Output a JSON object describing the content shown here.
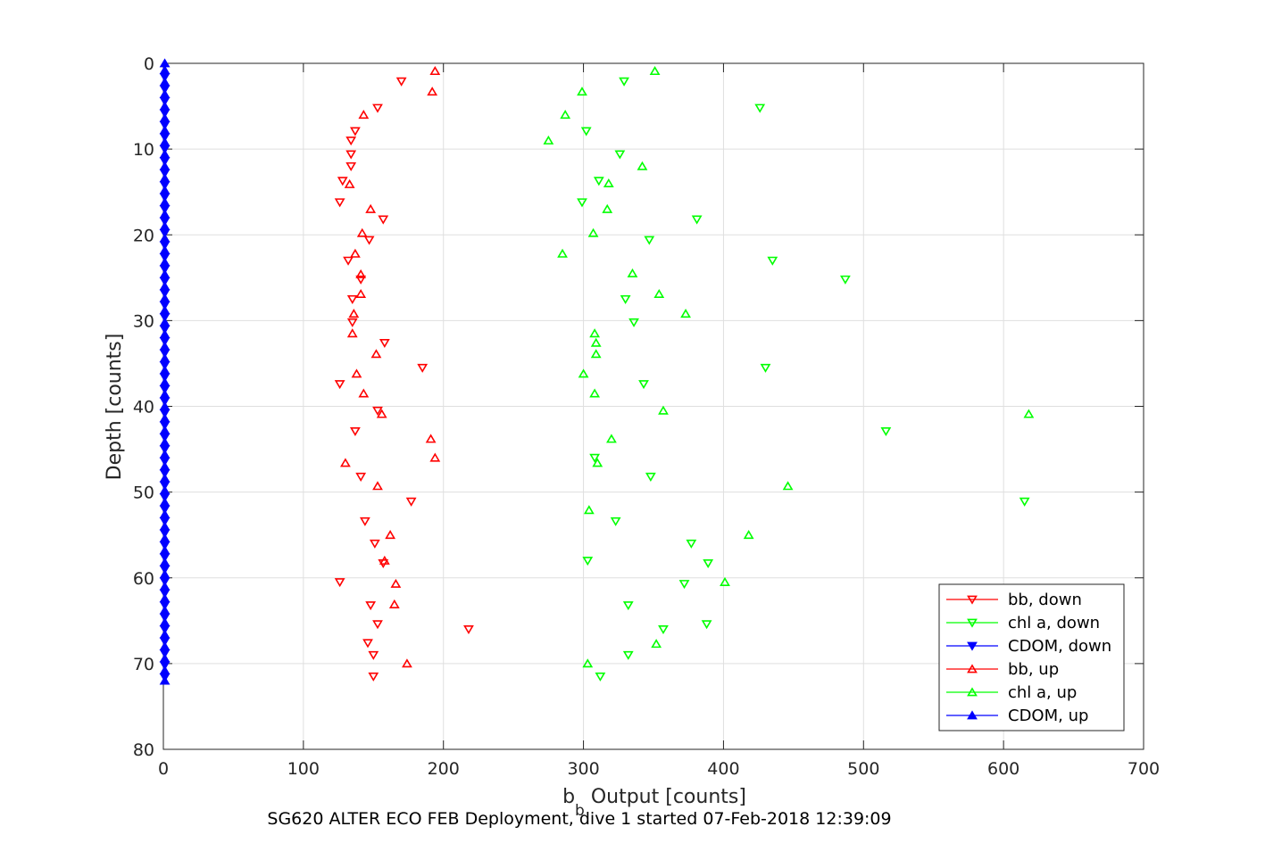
{
  "chart_data": {
    "type": "scatter",
    "title": "",
    "xlabel_main": "b",
    "xlabel_sub": "b",
    "xlabel_rest": " Output [counts]",
    "ylabel": "Depth [counts]",
    "caption": "SG620 ALTER ECO FEB Deployment, dive 1 started 07-Feb-2018 12:39:09",
    "xlim": [
      0,
      700
    ],
    "ylim": [
      0,
      80
    ],
    "y_reversed": true,
    "grid": true,
    "legend_position": "bottom-right",
    "x_ticks": [
      "0",
      "100",
      "200",
      "300",
      "400",
      "500",
      "600",
      "700"
    ],
    "y_ticks": [
      "0",
      "10",
      "20",
      "30",
      "40",
      "50",
      "60",
      "70",
      "80"
    ],
    "x_tick_values": [
      0,
      100,
      200,
      300,
      400,
      500,
      600,
      700
    ],
    "y_tick_values": [
      0,
      10,
      20,
      30,
      40,
      50,
      60,
      70,
      80
    ],
    "series": [
      {
        "name": "bb, down",
        "color": "#ff0000",
        "marker": "triangle-down",
        "points": [
          [
            170,
            2.1
          ],
          [
            153,
            5.2
          ],
          [
            137,
            7.9
          ],
          [
            134,
            9.0
          ],
          [
            134,
            10.6
          ],
          [
            134,
            12.0
          ],
          [
            128,
            13.7
          ],
          [
            126,
            16.2
          ],
          [
            157,
            18.2
          ],
          [
            147,
            20.6
          ],
          [
            132,
            23.0
          ],
          [
            141,
            25.2
          ],
          [
            135,
            27.5
          ],
          [
            135,
            30.2
          ],
          [
            158,
            32.6
          ],
          [
            185,
            35.5
          ],
          [
            126,
            37.4
          ],
          [
            153,
            40.5
          ],
          [
            137,
            42.9
          ],
          [
            141,
            48.2
          ],
          [
            177,
            51.1
          ],
          [
            144,
            53.4
          ],
          [
            151,
            56.0
          ],
          [
            157,
            58.3
          ],
          [
            126,
            60.5
          ],
          [
            148,
            63.2
          ],
          [
            153,
            65.4
          ],
          [
            218,
            66.0
          ],
          [
            146,
            67.6
          ],
          [
            150,
            69.0
          ],
          [
            150,
            71.5
          ]
        ]
      },
      {
        "name": "chl a, down",
        "color": "#00ff00",
        "marker": "triangle-down",
        "points": [
          [
            329,
            2.1
          ],
          [
            426,
            5.2
          ],
          [
            302,
            7.9
          ],
          [
            326,
            10.6
          ],
          [
            311,
            13.7
          ],
          [
            299,
            16.2
          ],
          [
            381,
            18.2
          ],
          [
            347,
            20.6
          ],
          [
            435,
            23.0
          ],
          [
            487,
            25.2
          ],
          [
            330,
            27.5
          ],
          [
            336,
            30.2
          ],
          [
            430,
            35.5
          ],
          [
            343,
            37.4
          ],
          [
            516,
            42.9
          ],
          [
            308,
            46.0
          ],
          [
            348,
            48.2
          ],
          [
            615,
            51.1
          ],
          [
            323,
            53.4
          ],
          [
            377,
            56.0
          ],
          [
            303,
            58.0
          ],
          [
            389,
            58.3
          ],
          [
            372,
            60.7
          ],
          [
            332,
            63.2
          ],
          [
            388,
            65.4
          ],
          [
            357,
            66.0
          ],
          [
            332,
            69.0
          ],
          [
            312,
            71.5
          ]
        ]
      },
      {
        "name": "CDOM, down",
        "color": "#0000ff",
        "marker": "triangle-down",
        "points": [
          [
            1,
            1.6
          ],
          [
            1,
            3.0
          ],
          [
            1,
            4.4
          ],
          [
            1,
            5.8
          ],
          [
            1,
            7.2
          ],
          [
            1,
            8.6
          ],
          [
            1,
            10.0
          ],
          [
            1,
            11.4
          ],
          [
            1,
            12.8
          ],
          [
            1,
            14.2
          ],
          [
            1,
            15.6
          ],
          [
            1,
            17.0
          ],
          [
            1,
            18.4
          ],
          [
            1,
            19.8
          ],
          [
            1,
            21.2
          ],
          [
            1,
            22.6
          ],
          [
            1,
            24.0
          ],
          [
            1,
            25.4
          ],
          [
            1,
            26.8
          ],
          [
            1,
            28.2
          ],
          [
            1,
            29.6
          ],
          [
            1,
            31.0
          ],
          [
            1,
            32.4
          ],
          [
            1,
            33.8
          ],
          [
            1,
            35.2
          ],
          [
            1,
            36.6
          ],
          [
            1,
            38.0
          ],
          [
            1,
            39.4
          ],
          [
            1,
            40.8
          ],
          [
            1,
            42.2
          ],
          [
            1,
            43.6
          ],
          [
            1,
            45.0
          ],
          [
            1,
            46.4
          ],
          [
            1,
            47.8
          ],
          [
            1,
            49.2
          ],
          [
            1,
            50.6
          ],
          [
            1,
            52.0
          ],
          [
            1,
            53.4
          ],
          [
            1,
            54.8
          ],
          [
            1,
            56.2
          ],
          [
            1,
            57.6
          ],
          [
            1,
            59.0
          ],
          [
            1,
            60.4
          ],
          [
            1,
            61.8
          ],
          [
            1,
            63.2
          ],
          [
            1,
            64.6
          ],
          [
            1,
            66.0
          ],
          [
            1,
            67.4
          ],
          [
            1,
            68.8
          ],
          [
            1,
            70.2
          ],
          [
            1,
            71.6
          ]
        ]
      },
      {
        "name": "bb, up",
        "color": "#ff0000",
        "marker": "triangle-up",
        "points": [
          [
            194,
            0.9
          ],
          [
            192,
            3.3
          ],
          [
            143,
            6.0
          ],
          [
            133,
            14.1
          ],
          [
            148,
            17.0
          ],
          [
            142,
            19.8
          ],
          [
            137,
            22.2
          ],
          [
            141,
            24.6
          ],
          [
            141,
            26.9
          ],
          [
            136,
            29.2
          ],
          [
            135,
            31.5
          ],
          [
            152,
            33.9
          ],
          [
            138,
            36.2
          ],
          [
            143,
            38.5
          ],
          [
            156,
            40.9
          ],
          [
            191,
            43.8
          ],
          [
            194,
            46.0
          ],
          [
            130,
            46.6
          ],
          [
            153,
            49.3
          ],
          [
            162,
            55.0
          ],
          [
            158,
            58.0
          ],
          [
            166,
            60.7
          ],
          [
            165,
            63.1
          ],
          [
            174,
            70.0
          ]
        ]
      },
      {
        "name": "chl a, up",
        "color": "#00ff00",
        "marker": "triangle-up",
        "points": [
          [
            351,
            0.9
          ],
          [
            299,
            3.3
          ],
          [
            287,
            6.0
          ],
          [
            275,
            9.0
          ],
          [
            342,
            12.0
          ],
          [
            318,
            14.0
          ],
          [
            317,
            17.0
          ],
          [
            307,
            19.8
          ],
          [
            285,
            22.2
          ],
          [
            335,
            24.5
          ],
          [
            354,
            26.9
          ],
          [
            373,
            29.2
          ],
          [
            308,
            31.5
          ],
          [
            309,
            32.6
          ],
          [
            309,
            33.9
          ],
          [
            300,
            36.2
          ],
          [
            308,
            38.5
          ],
          [
            357,
            40.5
          ],
          [
            618,
            40.9
          ],
          [
            320,
            43.8
          ],
          [
            310,
            46.6
          ],
          [
            446,
            49.3
          ],
          [
            304,
            52.1
          ],
          [
            418,
            55.0
          ],
          [
            401,
            60.5
          ],
          [
            352,
            67.7
          ],
          [
            303,
            70.0
          ]
        ]
      },
      {
        "name": "CDOM, up",
        "color": "#0000ff",
        "marker": "triangle-up",
        "points": [
          [
            1,
            0.0
          ],
          [
            1,
            0.8
          ],
          [
            1,
            2.2
          ],
          [
            1,
            3.6
          ],
          [
            1,
            5.0
          ],
          [
            1,
            6.4
          ],
          [
            1,
            7.8
          ],
          [
            1,
            9.2
          ],
          [
            1,
            10.6
          ],
          [
            1,
            12.0
          ],
          [
            1,
            13.4
          ],
          [
            1,
            14.8
          ],
          [
            1,
            16.2
          ],
          [
            1,
            17.6
          ],
          [
            1,
            19.0
          ],
          [
            1,
            20.4
          ],
          [
            1,
            21.8
          ],
          [
            1,
            23.2
          ],
          [
            1,
            24.6
          ],
          [
            1,
            26.0
          ],
          [
            1,
            27.4
          ],
          [
            1,
            28.8
          ],
          [
            1,
            30.2
          ],
          [
            1,
            31.6
          ],
          [
            1,
            33.0
          ],
          [
            1,
            34.4
          ],
          [
            1,
            35.8
          ],
          [
            1,
            37.2
          ],
          [
            1,
            38.6
          ],
          [
            1,
            40.0
          ],
          [
            1,
            41.4
          ],
          [
            1,
            42.8
          ],
          [
            1,
            44.2
          ],
          [
            1,
            45.6
          ],
          [
            1,
            47.0
          ],
          [
            1,
            48.4
          ],
          [
            1,
            49.8
          ],
          [
            1,
            51.2
          ],
          [
            1,
            52.6
          ],
          [
            1,
            54.0
          ],
          [
            1,
            55.4
          ],
          [
            1,
            56.8
          ],
          [
            1,
            58.2
          ],
          [
            1,
            59.6
          ],
          [
            1,
            61.0
          ],
          [
            1,
            62.4
          ],
          [
            1,
            63.8
          ],
          [
            1,
            65.2
          ],
          [
            1,
            66.6
          ],
          [
            1,
            68.0
          ],
          [
            1,
            69.4
          ],
          [
            1,
            70.8
          ],
          [
            1,
            72.0
          ]
        ]
      }
    ]
  }
}
